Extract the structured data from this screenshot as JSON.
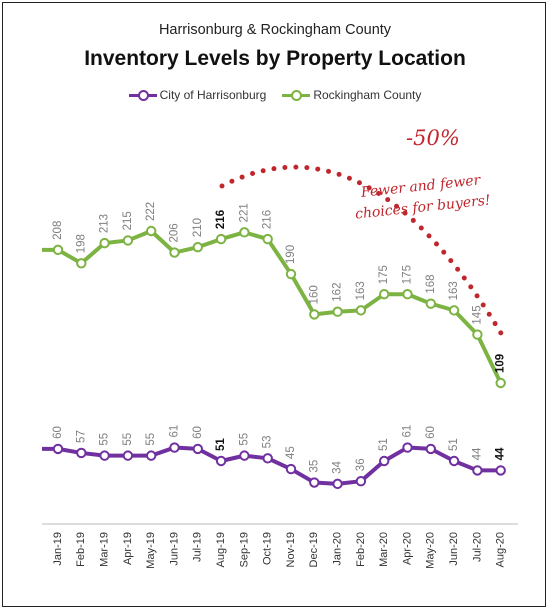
{
  "header": {
    "subtitle": "Harrisonburg & Rockingham County",
    "title": "Inventory Levels by Property Location"
  },
  "legend": {
    "items": [
      {
        "label": "City of Harrisonburg",
        "color": "#7030a0"
      },
      {
        "label": "Rockingham County",
        "color": "#7cb342"
      }
    ]
  },
  "annotations": {
    "percent": "-50%",
    "note": "Fewer and fewer choices for buyers!",
    "color": "#c0272d"
  },
  "chart_data": {
    "type": "line",
    "categories": [
      "Jan-19",
      "Feb-19",
      "Mar-19",
      "Apr-19",
      "May-19",
      "Jun-19",
      "Jul-19",
      "Aug-19",
      "Sep-19",
      "Oct-19",
      "Nov-19",
      "Dec-19",
      "Jan-20",
      "Feb-20",
      "Mar-20",
      "Apr-20",
      "May-20",
      "Jun-20",
      "Jul-20",
      "Aug-20"
    ],
    "series": [
      {
        "name": "City of Harrisonburg",
        "color": "#7030a0",
        "values": [
          60,
          57,
          55,
          55,
          55,
          61,
          60,
          51,
          55,
          53,
          45,
          35,
          34,
          36,
          51,
          61,
          60,
          51,
          44,
          44
        ],
        "bold_labels": [
          7,
          19
        ]
      },
      {
        "name": "Rockingham County",
        "color": "#7cb342",
        "values": [
          208,
          198,
          213,
          215,
          222,
          206,
          210,
          216,
          221,
          216,
          190,
          160,
          162,
          163,
          175,
          175,
          168,
          163,
          145,
          109
        ],
        "bold_labels": [
          7,
          19
        ]
      }
    ],
    "ylim": [
      0,
      300
    ],
    "grid": false,
    "legend_position": "top"
  }
}
